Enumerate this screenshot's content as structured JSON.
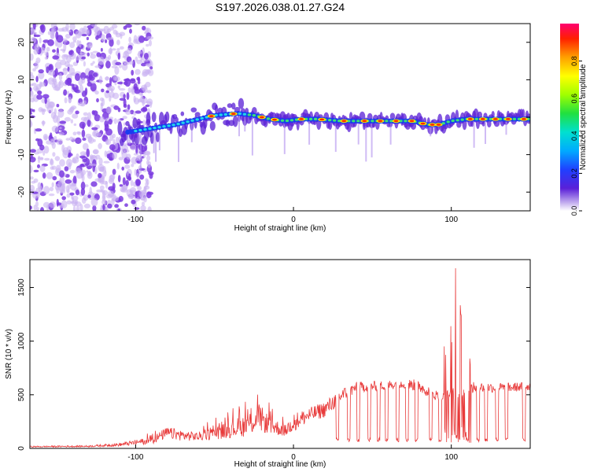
{
  "title": "S197.2026.038.01.27.G24",
  "chart_data": [
    {
      "type": "heatmap",
      "name": "spectrogram",
      "xlabel": "Height of straight line (km)",
      "ylabel": "Frequency (Hz)",
      "xlim": [
        -167,
        150
      ],
      "ylim": [
        -25,
        25
      ],
      "xticks": [
        -100,
        0,
        100
      ],
      "yticks": [
        20,
        10,
        0,
        -10,
        -20
      ],
      "colorbar": {
        "label": "Normalized spectral amplitude",
        "range": [
          0,
          1
        ],
        "ticks": [
          0.0,
          0.2,
          0.4,
          0.6,
          0.8
        ]
      },
      "ridge": {
        "description": "spectral energy concentrated near 0 Hz",
        "points": [
          [
            -105,
            -4
          ],
          [
            -90,
            -3
          ],
          [
            -75,
            -2
          ],
          [
            -60,
            -0.5
          ],
          [
            -50,
            0.5
          ],
          [
            -35,
            1
          ],
          [
            -25,
            0.5
          ],
          [
            -15,
            -0.5
          ],
          [
            -5,
            -1
          ],
          [
            5,
            -0.5
          ],
          [
            15,
            -0.5
          ],
          [
            30,
            -1
          ],
          [
            45,
            -1
          ],
          [
            60,
            -1
          ],
          [
            75,
            -1
          ],
          [
            85,
            -2
          ],
          [
            92,
            -2
          ],
          [
            100,
            -1
          ],
          [
            110,
            -0.5
          ],
          [
            130,
            -0.5
          ],
          [
            150,
            -0.5
          ]
        ],
        "scatter_region": {
          "x": [
            -167,
            -100
          ],
          "y": [
            -25,
            25
          ]
        }
      }
    },
    {
      "type": "line",
      "name": "snr",
      "xlabel": "Height of straight line (km)",
      "ylabel": "SNR (10 * v/v)",
      "xlim": [
        -167,
        150
      ],
      "ylim": [
        0,
        1760
      ],
      "xticks": [
        -100,
        0,
        100
      ],
      "yticks": [
        0,
        500,
        1000,
        1500
      ],
      "color": "#e83a3a",
      "envelope": [
        [
          -167,
          22,
          10
        ],
        [
          -130,
          28,
          12
        ],
        [
          -110,
          50,
          20
        ],
        [
          -90,
          110,
          40
        ],
        [
          -80,
          200,
          90
        ],
        [
          -70,
          170,
          70
        ],
        [
          -60,
          150,
          70
        ],
        [
          -45,
          230,
          90
        ],
        [
          -30,
          320,
          110
        ],
        [
          -22,
          420,
          160
        ],
        [
          -15,
          300,
          130
        ],
        [
          -5,
          220,
          110
        ],
        [
          0,
          330,
          160
        ],
        [
          10,
          380,
          240
        ],
        [
          20,
          440,
          290
        ],
        [
          30,
          560,
          420
        ],
        [
          40,
          620,
          520
        ],
        [
          55,
          630,
          540
        ],
        [
          70,
          650,
          560
        ],
        [
          80,
          640,
          520
        ],
        [
          88,
          560,
          460
        ],
        [
          95,
          520,
          420
        ],
        [
          105,
          600,
          450
        ],
        [
          115,
          620,
          520
        ],
        [
          135,
          610,
          520
        ],
        [
          150,
          620,
          540
        ]
      ],
      "dropouts": [
        28,
        35,
        41,
        48,
        54,
        59,
        66,
        72,
        78,
        87,
        93,
        110,
        117,
        122,
        129,
        135,
        146
      ],
      "peaks": [
        [
          96,
          1000
        ],
        [
          100,
          1150
        ],
        [
          103,
          1760
        ],
        [
          106,
          1350
        ],
        [
          109,
          1300
        ],
        [
          112,
          900
        ]
      ]
    }
  ]
}
